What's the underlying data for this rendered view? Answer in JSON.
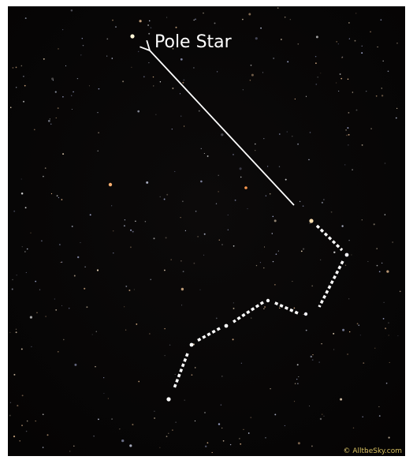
{
  "labels": {
    "pole_star": "Pole Star",
    "credit": "© AlltheSky.com"
  }
}
